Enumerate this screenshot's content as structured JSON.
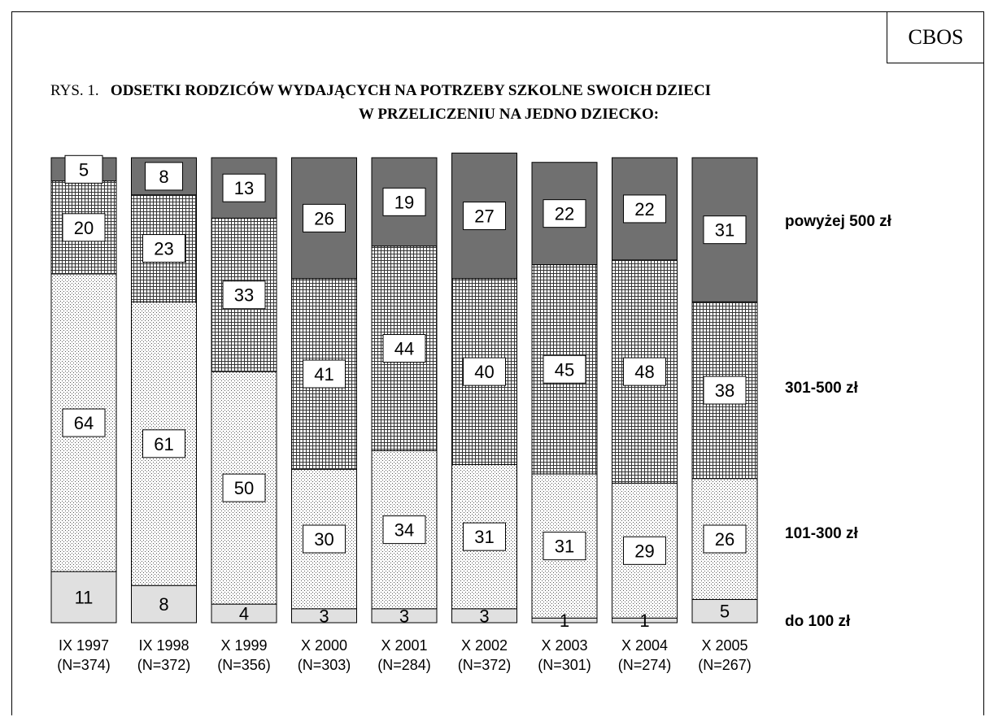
{
  "source": "CBOS",
  "title_prefix": "RYS. 1.",
  "title_line1": "ODSETKI RODZICÓW WYDAJĄCYCH NA POTRZEBY SZKOLNE SWOICH DZIECI",
  "title_line2": "W PRZELICZENIU NA JEDNO DZIECKO:",
  "chart_data": {
    "type": "bar",
    "stacked": true,
    "percent_stacked": true,
    "categories": [
      "IX 1997",
      "IX 1998",
      "X 1999",
      "X 2000",
      "X 2001",
      "X 2002",
      "X 2003",
      "X 2004",
      "X 2005"
    ],
    "category_notes": [
      "(N=374)",
      "(N=372)",
      "(N=356)",
      "(N=303)",
      "(N=284)",
      "(N=372)",
      "(N=301)",
      "(N=274)",
      "(N=267)"
    ],
    "series": [
      {
        "name": "do 100 zł",
        "values": [
          11,
          8,
          4,
          3,
          3,
          3,
          1,
          1,
          5
        ],
        "color": "#e0e0e0",
        "pattern": "solid"
      },
      {
        "name": "101-300 zł",
        "values": [
          64,
          61,
          50,
          30,
          34,
          31,
          31,
          29,
          26
        ],
        "color": "#d8d8d8",
        "pattern": "dots"
      },
      {
        "name": "301-500 zł",
        "values": [
          20,
          23,
          33,
          41,
          44,
          40,
          45,
          48,
          38
        ],
        "color": "#808080",
        "pattern": "grid"
      },
      {
        "name": "powyżej 500 zł",
        "values": [
          5,
          8,
          13,
          26,
          19,
          27,
          22,
          22,
          31
        ],
        "color": "#666666",
        "pattern": "solid"
      }
    ],
    "ylim": [
      0,
      100
    ],
    "legend_placement": "right"
  }
}
